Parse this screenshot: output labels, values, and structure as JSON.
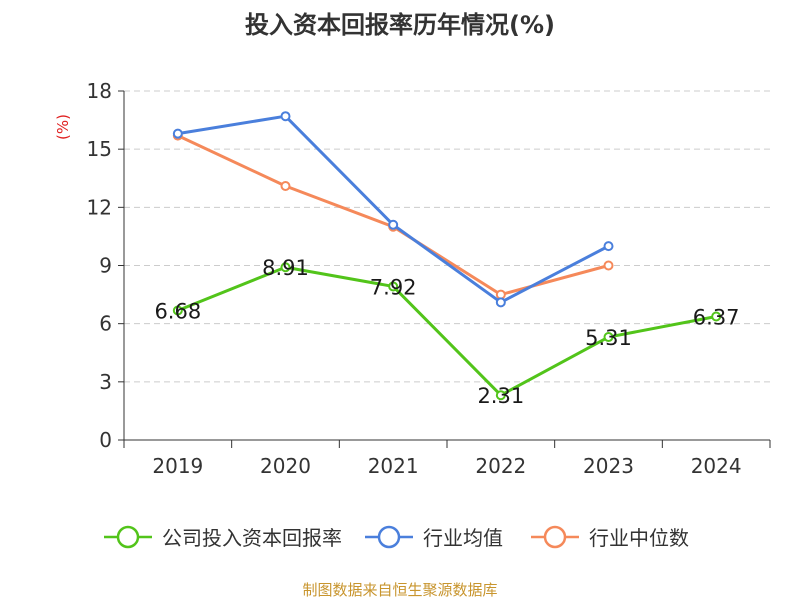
{
  "chart_data": {
    "type": "line",
    "title": "投入资本回报率历年情况(%)",
    "ylabel": "(%)",
    "xlabel": "",
    "categories": [
      "2019",
      "2020",
      "2021",
      "2022",
      "2023",
      "2024"
    ],
    "ylim": [
      0,
      18
    ],
    "yticks": [
      0,
      3,
      6,
      9,
      12,
      15,
      18
    ],
    "grid": true,
    "legend_position": "bottom",
    "series": [
      {
        "name": "公司投入资本回报率",
        "color": "#52c41a",
        "values": [
          6.68,
          8.91,
          7.92,
          2.31,
          5.31,
          6.37
        ],
        "labels": [
          "6.68",
          "8.91",
          "7.92",
          "2.31",
          "5.31",
          "6.37"
        ]
      },
      {
        "name": "行业均值",
        "color": "#4a7fdc",
        "values": [
          15.8,
          16.7,
          11.1,
          7.1,
          10.0,
          null
        ]
      },
      {
        "name": "行业中位数",
        "color": "#f5895a",
        "values": [
          15.7,
          13.1,
          11.0,
          7.5,
          9.0,
          null
        ]
      }
    ],
    "source": "制图数据来自恒生聚源数据库"
  }
}
